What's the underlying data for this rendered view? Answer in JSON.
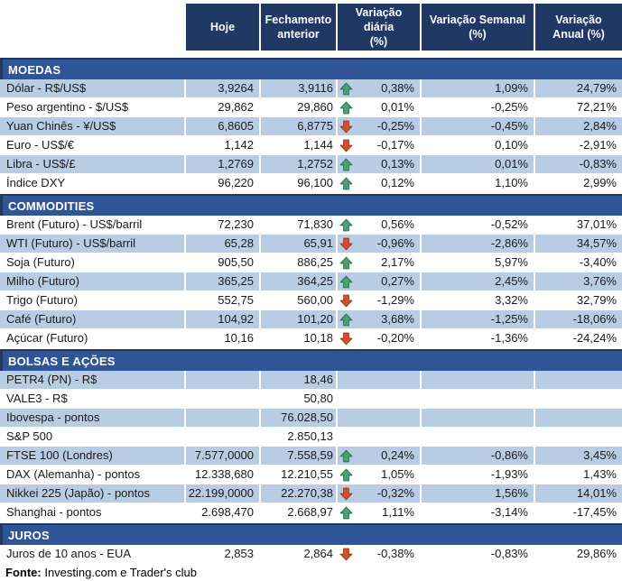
{
  "chart_data": {
    "type": "table",
    "columns": [
      "Hoje",
      "Fechamento\nanterior",
      "Variação diária\n(%)",
      "Variação Semanal\n(%)",
      "Variação\nAnual (%)"
    ],
    "sections": [
      {
        "title": "MOEDAS",
        "first_row_shaded": true,
        "rows": [
          {
            "label": "Dólar - R$/US$",
            "hoje": "3,9264",
            "fechamento": "3,9116",
            "arrow": "up",
            "var_diaria": "0,38%",
            "var_semanal": "1,09%",
            "var_anual": "24,79%"
          },
          {
            "label": "Peso argentino - $/US$",
            "hoje": "29,862",
            "fechamento": "29,860",
            "arrow": "up",
            "var_diaria": "0,01%",
            "var_semanal": "-0,25%",
            "var_anual": "72,21%"
          },
          {
            "label": "Yuan Chinês - ¥/US$",
            "hoje": "6,8605",
            "fechamento": "6,8775",
            "arrow": "down",
            "var_diaria": "-0,25%",
            "var_semanal": "-0,45%",
            "var_anual": "2,84%"
          },
          {
            "label": "Euro - US$/€",
            "hoje": "1,142",
            "fechamento": "1,144",
            "arrow": "down",
            "var_diaria": "-0,17%",
            "var_semanal": "0,10%",
            "var_anual": "-2,91%"
          },
          {
            "label": "Libra - US$/£",
            "hoje": "1,2769",
            "fechamento": "1,2752",
            "arrow": "up",
            "var_diaria": "0,13%",
            "var_semanal": "0,01%",
            "var_anual": "-0,83%"
          },
          {
            "label": "Índice DXY",
            "hoje": "96,220",
            "fechamento": "96,100",
            "arrow": "up",
            "var_diaria": "0,12%",
            "var_semanal": "1,10%",
            "var_anual": "2,99%"
          }
        ]
      },
      {
        "title": "COMMODITIES",
        "first_row_shaded": false,
        "rows": [
          {
            "label": "Brent (Futuro) - US$/barril",
            "hoje": "72,230",
            "fechamento": "71,830",
            "arrow": "up",
            "var_diaria": "0,56%",
            "var_semanal": "-0,52%",
            "var_anual": "37,01%"
          },
          {
            "label": "WTI (Futuro) - US$/barril",
            "hoje": "65,28",
            "fechamento": "65,91",
            "arrow": "down",
            "var_diaria": "-0,96%",
            "var_semanal": "-2,86%",
            "var_anual": "34,57%"
          },
          {
            "label": "Soja (Futuro)",
            "hoje": "905,50",
            "fechamento": "886,25",
            "arrow": "up",
            "var_diaria": "2,17%",
            "var_semanal": "5,97%",
            "var_anual": "-3,40%"
          },
          {
            "label": "Milho (Futuro)",
            "hoje": "365,25",
            "fechamento": "364,25",
            "arrow": "up",
            "var_diaria": "0,27%",
            "var_semanal": "2,45%",
            "var_anual": "3,76%"
          },
          {
            "label": "Trigo (Futuro)",
            "hoje": "552,75",
            "fechamento": "560,00",
            "arrow": "down",
            "var_diaria": "-1,29%",
            "var_semanal": "3,32%",
            "var_anual": "32,79%"
          },
          {
            "label": "Café (Futuro)",
            "hoje": "104,92",
            "fechamento": "101,20",
            "arrow": "up",
            "var_diaria": "3,68%",
            "var_semanal": "-1,25%",
            "var_anual": "-18,06%"
          },
          {
            "label": "Açúcar (Futuro)",
            "hoje": "10,16",
            "fechamento": "10,18",
            "arrow": "down",
            "var_diaria": "-0,20%",
            "var_semanal": "-1,36%",
            "var_anual": "-24,24%"
          }
        ]
      },
      {
        "title": "BOLSAS E AÇÕES",
        "first_row_shaded": true,
        "rows": [
          {
            "label": "PETR4 (PN) - R$",
            "hoje": "",
            "fechamento": "18,46",
            "arrow": "",
            "var_diaria": "",
            "var_semanal": "",
            "var_anual": ""
          },
          {
            "label": "VALE3 - R$",
            "hoje": "",
            "fechamento": "50,80",
            "arrow": "",
            "var_diaria": "",
            "var_semanal": "",
            "var_anual": ""
          },
          {
            "label": "Ibovespa - pontos",
            "hoje": "",
            "fechamento": "76.028,50",
            "arrow": "",
            "var_diaria": "",
            "var_semanal": "",
            "var_anual": ""
          },
          {
            "label": "S&P 500",
            "hoje": "",
            "fechamento": "2.850,13",
            "arrow": "",
            "var_diaria": "",
            "var_semanal": "",
            "var_anual": ""
          },
          {
            "label": "FTSE 100 (Londres)",
            "hoje": "7.577,0000",
            "fechamento": "7.558,59",
            "arrow": "up",
            "var_diaria": "0,24%",
            "var_semanal": "-0,86%",
            "var_anual": "3,45%"
          },
          {
            "label": "DAX (Alemanha) - pontos",
            "hoje": "12.338,680",
            "fechamento": "12.210,55",
            "arrow": "up",
            "var_diaria": "1,05%",
            "var_semanal": "-1,93%",
            "var_anual": "1,43%"
          },
          {
            "label": "Nikkei 225 (Japão) - pontos",
            "hoje": "22.199,0000",
            "fechamento": "22.270,38",
            "arrow": "down",
            "var_diaria": "-0,32%",
            "var_semanal": "1,56%",
            "var_anual": "14,01%"
          },
          {
            "label": "Shanghai - pontos",
            "hoje": "2.698,470",
            "fechamento": "2.668,97",
            "arrow": "up",
            "var_diaria": "1,11%",
            "var_semanal": "-3,14%",
            "var_anual": "-17,45%"
          }
        ]
      },
      {
        "title": "JUROS",
        "first_row_shaded": false,
        "rows": [
          {
            "label": "Juros de 10 anos - EUA",
            "hoje": "2,853",
            "fechamento": "2,864",
            "arrow": "down",
            "var_diaria": "-0,38%",
            "var_semanal": "-0,83%",
            "var_anual": "29,86%"
          }
        ]
      }
    ]
  },
  "footer": {
    "bold": "Fonte:",
    "text": "Investing.com e Trader's club"
  },
  "colors": {
    "header_bg": "#1F3864",
    "section_bg": "#2F5597",
    "row_shaded": "#B8CCE4",
    "arrow_up_fill": "#4CA173",
    "arrow_up_stroke": "#2E7050",
    "arrow_down_fill": "#D05030",
    "arrow_down_stroke": "#9C3A1E"
  }
}
